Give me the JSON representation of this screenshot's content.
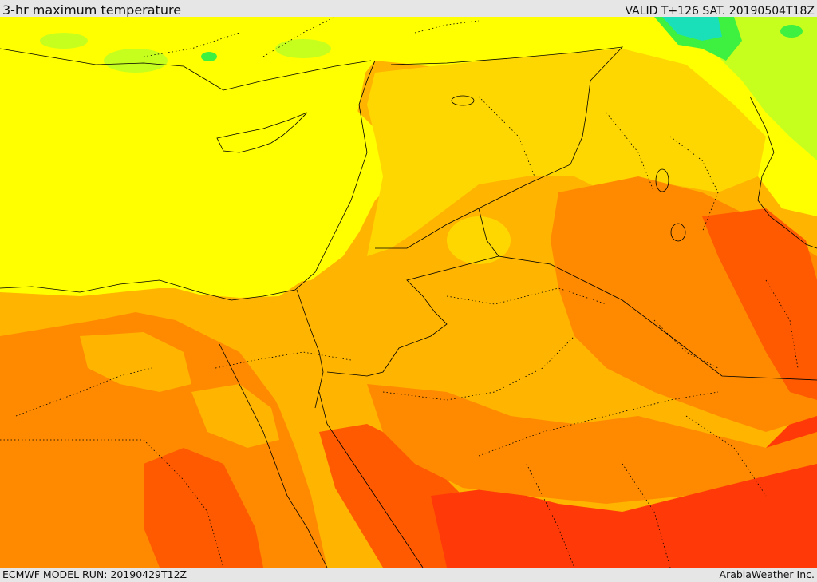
{
  "header": {
    "title": "3-hr maximum temperature",
    "valid_time": "VALID T+126 SAT. 20190504T18Z"
  },
  "footer": {
    "model_run": "ECMWF MODEL RUN: 20190429T12Z",
    "credit": "ArabiaWeather Inc."
  },
  "map": {
    "colors": {
      "cool_cyan": "#19e0b8",
      "green": "#3ef040",
      "yellow_green": "#c6ff1e",
      "yellow": "#ffff00",
      "yellow_orange": "#ffd700",
      "light_orange": "#ffb400",
      "orange": "#ff8a00",
      "dark_orange": "#ff5a00",
      "red_orange": "#ff3a08",
      "border_line": "#000000"
    }
  }
}
